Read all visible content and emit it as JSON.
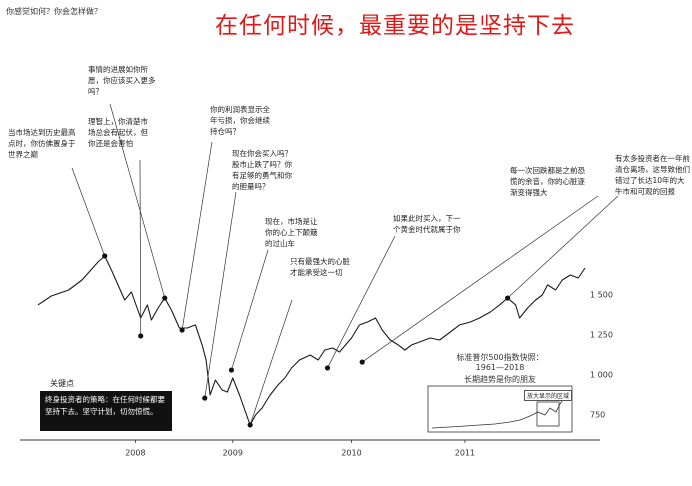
{
  "header": {
    "question": "你感觉如何？你会怎样做？",
    "title": "在任何时候，最重要的是坚持下去"
  },
  "chart_data": {
    "type": "line",
    "x": [
      2007.45,
      2007.55,
      2007.68,
      2007.78,
      2007.9,
      2007.95,
      2008.0,
      2008.1,
      2008.15,
      2008.22,
      2008.27,
      2008.3,
      2008.35,
      2008.4,
      2008.45,
      2008.51,
      2008.57,
      2008.63,
      2008.68,
      2008.71,
      2008.74,
      2008.78,
      2008.83,
      2008.87,
      2008.91,
      2008.96,
      2009.0,
      2009.04,
      2009.08,
      2009.13,
      2009.19,
      2009.25,
      2009.3,
      2009.35,
      2009.41,
      2009.49,
      2009.55,
      2009.6,
      2009.66,
      2009.71,
      2009.8,
      2009.86,
      2009.92,
      2009.98,
      2010.03,
      2010.09,
      2010.15,
      2010.2,
      2010.25,
      2010.31,
      2010.39,
      2010.46,
      2010.54,
      2010.61,
      2010.69,
      2010.76,
      2010.84,
      2010.91,
      2010.97,
      2011.03,
      2011.06,
      2011.12,
      2011.18,
      2011.23,
      2011.27,
      2011.33,
      2011.38,
      2011.44,
      2011.5,
      2011.55
    ],
    "values": [
      1438,
      1494,
      1531,
      1594,
      1706,
      1744,
      1656,
      1469,
      1519,
      1356,
      1438,
      1344,
      1419,
      1481,
      1406,
      1294,
      1294,
      1313,
      1188,
      1094,
      875,
      969,
      906,
      894,
      981,
      875,
      781,
      688,
      750,
      794,
      875,
      938,
      981,
      1044,
      1094,
      1125,
      1094,
      1156,
      1169,
      1144,
      1231,
      1313,
      1331,
      1356,
      1281,
      1219,
      1188,
      1156,
      1188,
      1206,
      1231,
      1219,
      1269,
      1313,
      1331,
      1356,
      1394,
      1438,
      1481,
      1438,
      1356,
      1419,
      1469,
      1500,
      1563,
      1531,
      1594,
      1625,
      1606,
      1669
    ],
    "color": "#1a1a1a",
    "xlim": [
      2007.45,
      2011.55
    ],
    "xticks": [
      {
        "value": 2008.18,
        "label": "2008"
      },
      {
        "value": 2008.91,
        "label": "2009"
      },
      {
        "value": 2009.8,
        "label": "2010"
      },
      {
        "value": 2010.65,
        "label": "2011"
      }
    ],
    "ylim": [
      650,
      1800
    ],
    "yticks": [
      750,
      {
        "value": 1000,
        "label": "1 000"
      },
      {
        "value": 1250,
        "label": "1 250"
      },
      {
        "value": 1500,
        "label": "1 500"
      }
    ],
    "grid": false,
    "annotations": [
      {
        "text": "当市场达到历史最高点时，你仿佛置身于世界之巅",
        "x": 2007.95,
        "y": 1744
      },
      {
        "text": "事情的进展如你所愿，你应该买入更多吗？",
        "x": 2008.4,
        "y": 1481
      },
      {
        "text": "理智上，你清楚市场总会有起伏，但你还是会害怕",
        "x": 2008.22,
        "y": 1244
      },
      {
        "text": "你的利润表显示全年亏损，你会继续持仓吗？",
        "x": 2008.53,
        "y": 1281
      },
      {
        "text": "现在你会买入吗？股市止跌了吗？你有足够的勇气和你的胆量吗？",
        "x": 2008.7,
        "y": 856
      },
      {
        "text": "现在，市场是让你的心上下颠簸的过山车",
        "x": 2008.9,
        "y": 1031
      },
      {
        "text": "只有最强大的心脏才能承受这一切",
        "x": 2009.04,
        "y": 688
      },
      {
        "text": "如果此时买入，下一个黄金时代就属于你",
        "x": 2009.62,
        "y": 1044
      },
      {
        "text": "每一次回跌都是之前恐慌的余音，你的心脏逐渐变得强大",
        "x": 2009.88,
        "y": 1081
      },
      {
        "text": "有太多投资者在一年前清仓离场，这导致他们错过了长达10年的大牛市和可观的回报",
        "x": 2010.97,
        "y": 1481
      }
    ]
  },
  "inset": {
    "title": "标准普尔500指数快照：",
    "years": "1961—2018",
    "caption": "长期趋势是你的朋友",
    "zoom_label": "放大显示的区域"
  },
  "key_point": {
    "label": "关键点",
    "text": "终身投资者的策略：在任何时候都要坚持下去。坚守计划，切勿惊慌。"
  }
}
